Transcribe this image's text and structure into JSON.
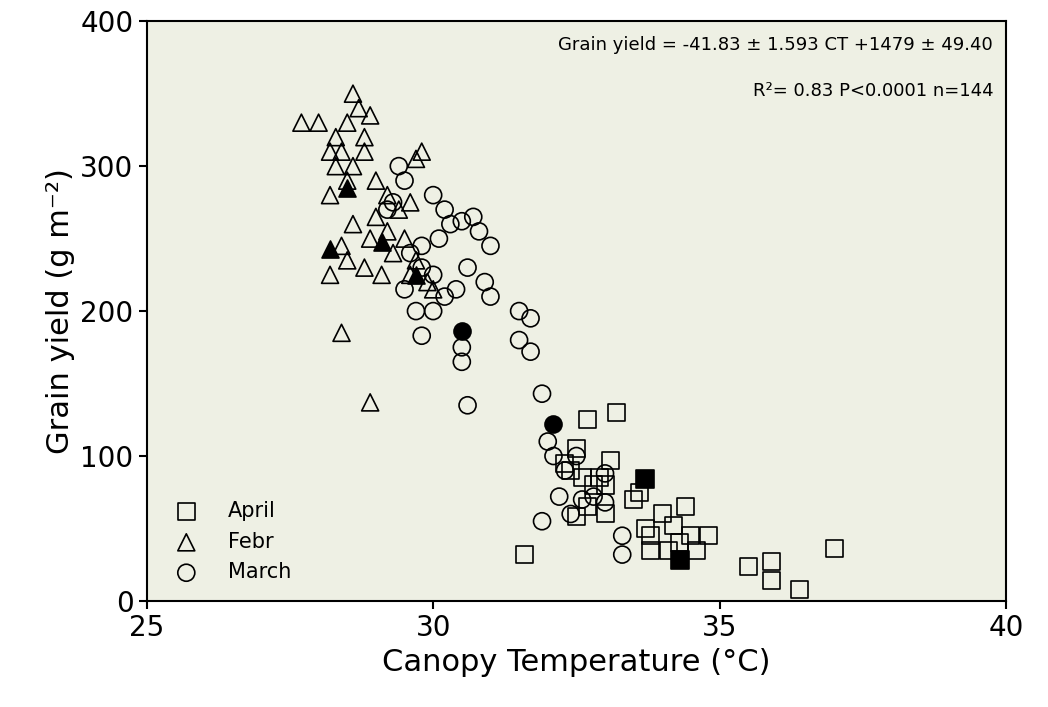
{
  "chart_data": {
    "type": "scatter",
    "x_label": "Canopy Temperature (°C)",
    "y_label": "Grain yield (g m⁻²)",
    "annotations": [
      "Grain yield = -41.83 ± 1.593 CT +1479 ± 49.40",
      "R²= 0.83 P<0.0001 n=144"
    ],
    "xlim": [
      25,
      40
    ],
    "xticks": [
      25,
      30,
      35,
      40
    ],
    "ylim": [
      0,
      400
    ],
    "yticks": [
      0,
      100,
      200,
      300,
      400
    ],
    "legend": "lower left",
    "series": [
      {
        "name": "April",
        "marker": "open-square",
        "color": "#000000",
        "x": [
          31.6,
          32.3,
          32.5,
          32.7,
          33.2,
          32.6,
          32.9,
          33.1,
          33.0,
          32.7,
          32.5,
          33.0,
          33.5,
          33.6,
          33.7,
          33.8,
          34.0,
          34.2,
          34.3,
          34.4,
          34.5,
          34.6,
          34.8,
          33.8,
          34.1,
          35.5,
          35.9,
          35.9,
          36.4,
          37.0,
          32.4,
          32.8
        ],
        "values": [
          32,
          95,
          105,
          125,
          130,
          85,
          85,
          97,
          80,
          65,
          58,
          60,
          70,
          75,
          50,
          45,
          60,
          52,
          40,
          65,
          45,
          35,
          45,
          35,
          35,
          24,
          27,
          14,
          8,
          36,
          90,
          80
        ]
      },
      {
        "name": "Febr",
        "marker": "open-triangle",
        "color": "#000000",
        "x": [
          27.7,
          28.0,
          28.2,
          28.3,
          28.5,
          28.6,
          28.7,
          28.8,
          28.9,
          28.4,
          28.6,
          28.2,
          28.3,
          28.5,
          28.8,
          29.0,
          29.2,
          29.4,
          29.6,
          29.0,
          28.9,
          28.6,
          28.4,
          28.2,
          28.5,
          28.8,
          29.1,
          29.3,
          29.5,
          29.7,
          29.9,
          30.0,
          29.7,
          29.8,
          28.4,
          28.9,
          29.2,
          29.6
        ],
        "values": [
          330,
          330,
          310,
          320,
          330,
          350,
          340,
          320,
          335,
          310,
          300,
          280,
          300,
          290,
          310,
          290,
          280,
          270,
          275,
          265,
          250,
          260,
          245,
          225,
          235,
          230,
          225,
          240,
          250,
          235,
          220,
          215,
          305,
          310,
          185,
          137,
          255,
          225
        ]
      },
      {
        "name": "March",
        "marker": "open-circle",
        "color": "#000000",
        "x": [
          29.4,
          29.5,
          29.3,
          29.2,
          30.0,
          30.2,
          30.3,
          30.5,
          30.7,
          30.8,
          31.0,
          30.1,
          29.8,
          29.6,
          29.8,
          30.0,
          30.2,
          30.4,
          30.6,
          30.9,
          31.0,
          29.5,
          29.7,
          30.0,
          30.5,
          30.5,
          30.6,
          29.8,
          31.5,
          31.7,
          31.5,
          31.7,
          31.9,
          32.0,
          32.1,
          32.3,
          32.4,
          32.2,
          31.9,
          32.6,
          32.8,
          33.0,
          33.3,
          33.3,
          32.5,
          33.0
        ],
        "values": [
          300,
          290,
          275,
          270,
          280,
          270,
          260,
          262,
          265,
          255,
          245,
          250,
          245,
          240,
          230,
          225,
          210,
          215,
          230,
          220,
          210,
          215,
          200,
          200,
          175,
          165,
          135,
          183,
          200,
          195,
          180,
          172,
          143,
          110,
          100,
          90,
          60,
          72,
          55,
          70,
          72,
          68,
          45,
          32,
          100,
          88
        ]
      },
      {
        "marker": "filled-square",
        "color": "#000000",
        "x": [
          33.7,
          34.3
        ],
        "values": [
          84,
          28
        ]
      },
      {
        "marker": "filled-triangle",
        "color": "#000000",
        "x": [
          28.5,
          28.2,
          29.1,
          29.7
        ],
        "values": [
          285,
          243,
          248,
          225
        ]
      },
      {
        "marker": "filled-circle",
        "color": "#000000",
        "x": [
          30.5,
          32.1
        ],
        "values": [
          186,
          122
        ]
      }
    ]
  }
}
